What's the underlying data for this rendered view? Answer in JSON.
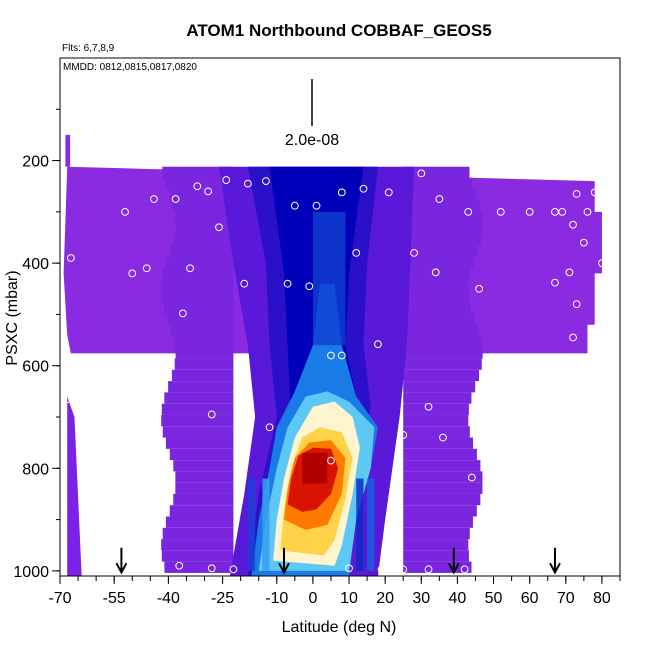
{
  "chart_data": {
    "type": "heatmap",
    "title": "ATOM1 Northbound COBBAF_GEOS5",
    "annotations": {
      "flights": "Flts: 6,7,8,9",
      "dates": "MMDD: 0812,0815,0817,0820",
      "scale_label": "2.0e-08"
    },
    "xlabel": "Latitude (deg N)",
    "ylabel": "PSXC (mbar)",
    "xlim": [
      -70,
      85
    ],
    "ylim": [
      1010,
      0
    ],
    "x_ticks": [
      -70,
      -55,
      -40,
      -25,
      -10,
      0,
      10,
      20,
      30,
      40,
      50,
      60,
      70,
      80
    ],
    "x_tick_labels": [
      "-70",
      "-55",
      "-40",
      "-25",
      "-10",
      "0",
      "10",
      "20",
      "30",
      "40",
      "50",
      "60",
      "70",
      "80"
    ],
    "y_ticks": [
      200,
      400,
      600,
      800,
      1000
    ],
    "y_tick_labels": [
      "200",
      "400",
      "600",
      "800",
      "1000"
    ],
    "colors": {
      "low": "#8a2be2",
      "mid_low": "#0000cd",
      "mid": "#ffffff",
      "mid_high": "#ffd700",
      "high": "#cc0000"
    },
    "arrow_latitudes": [
      -53,
      -8,
      39,
      67
    ],
    "sample_points": [
      {
        "lat": -67,
        "p": 390
      },
      {
        "lat": -68,
        "p": 665
      },
      {
        "lat": -61,
        "p": 655
      },
      {
        "lat": -52,
        "p": 300
      },
      {
        "lat": -50,
        "p": 420
      },
      {
        "lat": -46,
        "p": 410
      },
      {
        "lat": -44,
        "p": 275
      },
      {
        "lat": -38,
        "p": 275
      },
      {
        "lat": -36,
        "p": 498
      },
      {
        "lat": -34,
        "p": 410
      },
      {
        "lat": -32,
        "p": 250
      },
      {
        "lat": -29,
        "p": 260
      },
      {
        "lat": -26,
        "p": 330
      },
      {
        "lat": -24,
        "p": 238
      },
      {
        "lat": -21,
        "p": 650
      },
      {
        "lat": -19,
        "p": 440
      },
      {
        "lat": -18,
        "p": 245
      },
      {
        "lat": -13,
        "p": 240
      },
      {
        "lat": -12,
        "p": 720
      },
      {
        "lat": -7,
        "p": 440
      },
      {
        "lat": -5,
        "p": 288
      },
      {
        "lat": -1,
        "p": 445
      },
      {
        "lat": 1,
        "p": 288
      },
      {
        "lat": 5,
        "p": 580
      },
      {
        "lat": 8,
        "p": 262
      },
      {
        "lat": 12,
        "p": 380
      },
      {
        "lat": 14,
        "p": 255
      },
      {
        "lat": 18,
        "p": 558
      },
      {
        "lat": 21,
        "p": 262
      },
      {
        "lat": 25,
        "p": 735
      },
      {
        "lat": 28,
        "p": 380
      },
      {
        "lat": 30,
        "p": 225
      },
      {
        "lat": 32,
        "p": 680
      },
      {
        "lat": 34,
        "p": 418
      },
      {
        "lat": 35,
        "p": 275
      },
      {
        "lat": 36,
        "p": 740
      },
      {
        "lat": 43,
        "p": 300
      },
      {
        "lat": 44,
        "p": 818
      },
      {
        "lat": 46,
        "p": 450
      },
      {
        "lat": 52,
        "p": 300
      },
      {
        "lat": 60,
        "p": 300
      },
      {
        "lat": 66,
        "p": 620
      },
      {
        "lat": 66,
        "p": 770
      },
      {
        "lat": 67,
        "p": 300
      },
      {
        "lat": 67,
        "p": 438
      },
      {
        "lat": 69,
        "p": 300
      },
      {
        "lat": 70,
        "p": 218
      },
      {
        "lat": 71,
        "p": 418
      },
      {
        "lat": 72,
        "p": 325
      },
      {
        "lat": 72,
        "p": 545
      },
      {
        "lat": 73,
        "p": 265
      },
      {
        "lat": 73,
        "p": 480
      },
      {
        "lat": 74,
        "p": 785
      },
      {
        "lat": 75,
        "p": 360
      },
      {
        "lat": 76,
        "p": 300
      },
      {
        "lat": 78,
        "p": 262
      },
      {
        "lat": 80,
        "p": 400
      },
      {
        "lat": -57,
        "p": 995
      },
      {
        "lat": -37,
        "p": 990
      },
      {
        "lat": -28,
        "p": 995
      },
      {
        "lat": -22,
        "p": 997
      },
      {
        "lat": 10,
        "p": 995
      },
      {
        "lat": 19,
        "p": 997
      },
      {
        "lat": 25,
        "p": 997
      },
      {
        "lat": 32,
        "p": 997
      },
      {
        "lat": 42,
        "p": 997
      },
      {
        "lat": 45,
        "p": 990
      },
      {
        "lat": 72,
        "p": 997
      },
      {
        "lat": 8,
        "p": 580
      },
      {
        "lat": -47,
        "p": 683
      },
      {
        "lat": -43,
        "p": 693
      },
      {
        "lat": -28,
        "p": 695
      },
      {
        "lat": 5,
        "p": 785
      }
    ]
  }
}
